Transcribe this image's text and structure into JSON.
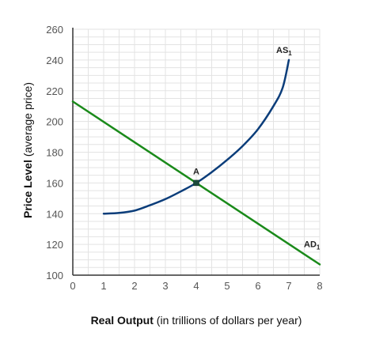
{
  "chart_data": {
    "type": "line",
    "xlabel": {
      "bold": "Real Output",
      "rest": "(in trillions of dollars per year)"
    },
    "ylabel": {
      "bold": "Price Level",
      "rest": "(average price)"
    },
    "xlim": [
      0,
      8
    ],
    "ylim": [
      100,
      260
    ],
    "x_ticks": [
      0,
      1,
      2,
      3,
      4,
      5,
      6,
      7,
      8
    ],
    "y_ticks": [
      100,
      120,
      140,
      160,
      180,
      200,
      220,
      240,
      260
    ],
    "grid": true,
    "series": [
      {
        "name": "AS",
        "subscript": "1",
        "color": "#0b3d7a",
        "points": [
          [
            1,
            140
          ],
          [
            1.5,
            140.5
          ],
          [
            2,
            142
          ],
          [
            2.5,
            145.5
          ],
          [
            3,
            149.5
          ],
          [
            3.5,
            154.5
          ],
          [
            4,
            160
          ],
          [
            4.5,
            167
          ],
          [
            5,
            175
          ],
          [
            5.5,
            184
          ],
          [
            6,
            195
          ],
          [
            6.5,
            210
          ],
          [
            6.8,
            222
          ],
          [
            7,
            240
          ]
        ]
      },
      {
        "name": "AD",
        "subscript": "1",
        "color": "#1a8a1a",
        "points": [
          [
            0,
            213
          ],
          [
            8,
            107
          ]
        ]
      }
    ],
    "annotations": [
      {
        "text": "A",
        "x": 4,
        "y": 160
      }
    ]
  }
}
